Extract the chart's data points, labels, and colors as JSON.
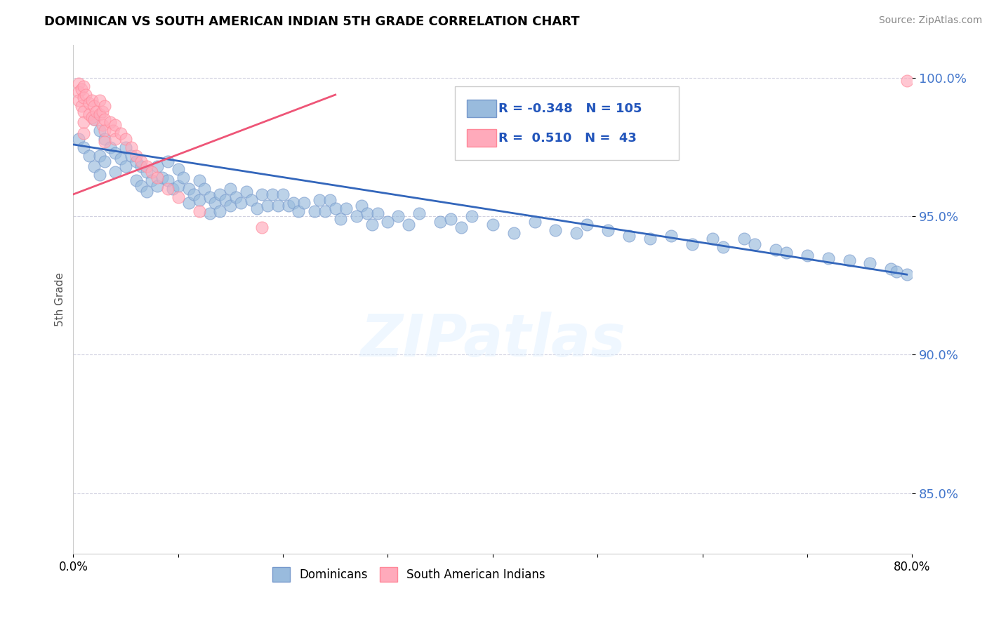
{
  "title": "DOMINICAN VS SOUTH AMERICAN INDIAN 5TH GRADE CORRELATION CHART",
  "source": "Source: ZipAtlas.com",
  "ylabel": "5th Grade",
  "xlim": [
    0.0,
    0.8
  ],
  "ylim": [
    0.828,
    1.012
  ],
  "yticks": [
    0.85,
    0.9,
    0.95,
    1.0
  ],
  "ytick_labels": [
    "85.0%",
    "90.0%",
    "95.0%",
    "100.0%"
  ],
  "xticks": [
    0.0,
    0.1,
    0.2,
    0.3,
    0.4,
    0.5,
    0.6,
    0.7,
    0.8
  ],
  "xtick_labels": [
    "0.0%",
    "",
    "",
    "",
    "",
    "",
    "",
    "",
    "80.0%"
  ],
  "blue_color": "#99BBDD",
  "pink_color": "#FFAABB",
  "blue_edge_color": "#7799CC",
  "pink_edge_color": "#FF8899",
  "blue_line_color": "#3366BB",
  "pink_line_color": "#EE5577",
  "legend_R_blue": "-0.348",
  "legend_N_blue": "105",
  "legend_R_pink": "0.510",
  "legend_N_pink": "43",
  "watermark": "ZIPatlas",
  "blue_scatter_x": [
    0.005,
    0.01,
    0.015,
    0.02,
    0.02,
    0.025,
    0.025,
    0.025,
    0.03,
    0.03,
    0.035,
    0.04,
    0.04,
    0.045,
    0.05,
    0.05,
    0.055,
    0.06,
    0.06,
    0.065,
    0.065,
    0.07,
    0.07,
    0.075,
    0.08,
    0.08,
    0.085,
    0.09,
    0.09,
    0.095,
    0.1,
    0.1,
    0.105,
    0.11,
    0.11,
    0.115,
    0.12,
    0.12,
    0.125,
    0.13,
    0.13,
    0.135,
    0.14,
    0.14,
    0.145,
    0.15,
    0.15,
    0.155,
    0.16,
    0.165,
    0.17,
    0.175,
    0.18,
    0.185,
    0.19,
    0.195,
    0.2,
    0.205,
    0.21,
    0.215,
    0.22,
    0.23,
    0.235,
    0.24,
    0.245,
    0.25,
    0.255,
    0.26,
    0.27,
    0.275,
    0.28,
    0.285,
    0.29,
    0.3,
    0.31,
    0.32,
    0.33,
    0.35,
    0.36,
    0.37,
    0.38,
    0.4,
    0.42,
    0.44,
    0.46,
    0.48,
    0.49,
    0.51,
    0.53,
    0.55,
    0.57,
    0.59,
    0.61,
    0.62,
    0.64,
    0.65,
    0.67,
    0.68,
    0.7,
    0.72,
    0.74,
    0.76,
    0.78,
    0.785,
    0.795
  ],
  "blue_scatter_y": [
    0.978,
    0.975,
    0.972,
    0.985,
    0.968,
    0.981,
    0.972,
    0.965,
    0.978,
    0.97,
    0.975,
    0.973,
    0.966,
    0.971,
    0.975,
    0.968,
    0.972,
    0.97,
    0.963,
    0.968,
    0.961,
    0.966,
    0.959,
    0.963,
    0.968,
    0.961,
    0.964,
    0.97,
    0.963,
    0.96,
    0.967,
    0.961,
    0.964,
    0.96,
    0.955,
    0.958,
    0.963,
    0.956,
    0.96,
    0.957,
    0.951,
    0.955,
    0.958,
    0.952,
    0.956,
    0.96,
    0.954,
    0.957,
    0.955,
    0.959,
    0.956,
    0.953,
    0.958,
    0.954,
    0.958,
    0.954,
    0.958,
    0.954,
    0.955,
    0.952,
    0.955,
    0.952,
    0.956,
    0.952,
    0.956,
    0.953,
    0.949,
    0.953,
    0.95,
    0.954,
    0.951,
    0.947,
    0.951,
    0.948,
    0.95,
    0.947,
    0.951,
    0.948,
    0.949,
    0.946,
    0.95,
    0.947,
    0.944,
    0.948,
    0.945,
    0.944,
    0.947,
    0.945,
    0.943,
    0.942,
    0.943,
    0.94,
    0.942,
    0.939,
    0.942,
    0.94,
    0.938,
    0.937,
    0.936,
    0.935,
    0.934,
    0.933,
    0.931,
    0.93,
    0.929
  ],
  "pink_scatter_x": [
    0.005,
    0.005,
    0.005,
    0.008,
    0.008,
    0.01,
    0.01,
    0.01,
    0.01,
    0.01,
    0.012,
    0.015,
    0.015,
    0.018,
    0.018,
    0.02,
    0.02,
    0.022,
    0.025,
    0.025,
    0.028,
    0.028,
    0.03,
    0.03,
    0.03,
    0.03,
    0.035,
    0.038,
    0.04,
    0.04,
    0.045,
    0.05,
    0.055,
    0.06,
    0.065,
    0.07,
    0.075,
    0.08,
    0.09,
    0.1,
    0.12,
    0.18,
    0.795
  ],
  "pink_scatter_y": [
    0.998,
    0.995,
    0.992,
    0.996,
    0.99,
    0.997,
    0.993,
    0.988,
    0.984,
    0.98,
    0.994,
    0.991,
    0.987,
    0.992,
    0.986,
    0.99,
    0.985,
    0.988,
    0.992,
    0.987,
    0.988,
    0.983,
    0.99,
    0.985,
    0.981,
    0.977,
    0.984,
    0.981,
    0.983,
    0.978,
    0.98,
    0.978,
    0.975,
    0.972,
    0.97,
    0.968,
    0.966,
    0.964,
    0.96,
    0.957,
    0.952,
    0.946,
    0.999
  ],
  "blue_line_x": [
    0.0,
    0.795
  ],
  "blue_line_y": [
    0.976,
    0.929
  ],
  "pink_line_x": [
    0.0,
    0.25
  ],
  "pink_line_y": [
    0.958,
    0.994
  ]
}
